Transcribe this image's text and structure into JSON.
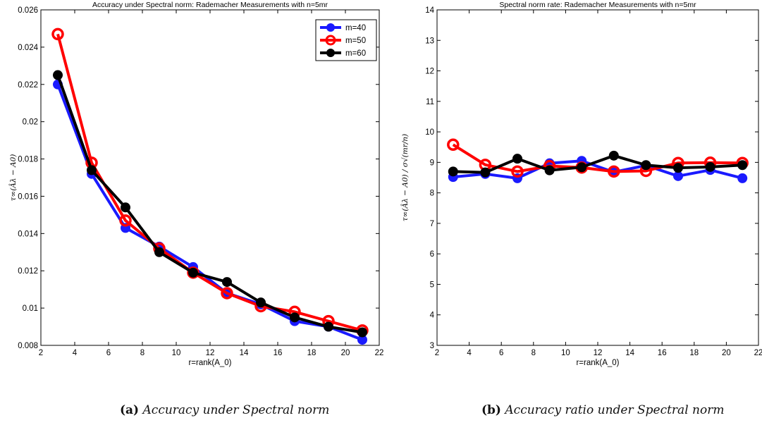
{
  "captions": {
    "a_label": "(a)",
    "a_text": "Accuracy under Spectral norm",
    "b_label": "(b)",
    "b_text": "Accuracy ratio under Spectral norm"
  },
  "chart_data": [
    {
      "type": "line",
      "title": "Accuracy under Spectral norm: Rademacher Measurements with n=5mr",
      "xlabel": "r=rank(A_0)",
      "ylabel": "τ∞(Âλ − A0)",
      "xlim": [
        2,
        22
      ],
      "ylim": [
        0.008,
        0.026
      ],
      "xticks": [
        2,
        4,
        6,
        8,
        10,
        12,
        14,
        16,
        18,
        20,
        22
      ],
      "yticks": [
        0.008,
        0.01,
        0.012,
        0.014,
        0.016,
        0.018,
        0.02,
        0.022,
        0.024,
        0.026
      ],
      "ytick_labels": [
        "0.008",
        "0.01",
        "0.012",
        "0.014",
        "0.016",
        "0.018",
        "0.02",
        "0.022",
        "0.024",
        "0.026"
      ],
      "grid": false,
      "legend_position": "top-right",
      "x": [
        3,
        5,
        7,
        9,
        11,
        13,
        15,
        17,
        19,
        21
      ],
      "series": [
        {
          "name": "m=40",
          "color": "#1a1aff",
          "marker": "filled",
          "values": [
            0.022,
            0.0172,
            0.0143,
            0.0133,
            0.0122,
            0.0108,
            0.0102,
            0.0093,
            0.009,
            0.0083
          ]
        },
        {
          "name": "m=50",
          "color": "#ff0000",
          "marker": "open",
          "values": [
            0.0247,
            0.0178,
            0.0147,
            0.0132,
            0.0119,
            0.0108,
            0.0101,
            0.0098,
            0.0093,
            0.0088
          ]
        },
        {
          "name": "m=60",
          "color": "#000000",
          "marker": "filled",
          "values": [
            0.0225,
            0.0174,
            0.0154,
            0.013,
            0.0119,
            0.0114,
            0.0103,
            0.0095,
            0.009,
            0.0087
          ]
        }
      ]
    },
    {
      "type": "line",
      "title": "Spectral norm rate: Rademacher Measurements with n=5mr",
      "xlabel": "r=rank(A_0)",
      "ylabel": "τ∞(Âλ − A0) / σ√(mr/n)",
      "xlim": [
        2,
        22
      ],
      "ylim": [
        3,
        14
      ],
      "xticks": [
        2,
        4,
        6,
        8,
        10,
        12,
        14,
        16,
        18,
        20,
        22
      ],
      "yticks": [
        3,
        4,
        5,
        6,
        7,
        8,
        9,
        10,
        11,
        12,
        13,
        14
      ],
      "ytick_labels": [
        "3",
        "4",
        "5",
        "6",
        "7",
        "8",
        "9",
        "10",
        "11",
        "12",
        "13",
        "14"
      ],
      "grid": false,
      "legend_position": "none",
      "x": [
        3,
        5,
        7,
        9,
        11,
        13,
        15,
        17,
        19,
        21
      ],
      "series": [
        {
          "color": "#1a1aff",
          "marker": "filled",
          "values": [
            8.52,
            8.62,
            8.48,
            8.97,
            9.05,
            8.68,
            8.9,
            8.55,
            8.75,
            8.48
          ]
        },
        {
          "color": "#ff0000",
          "marker": "open",
          "values": [
            9.58,
            8.92,
            8.7,
            8.88,
            8.83,
            8.7,
            8.72,
            8.98,
            8.99,
            8.98
          ]
        },
        {
          "color": "#000000",
          "marker": "filled",
          "values": [
            8.7,
            8.67,
            9.12,
            8.74,
            8.84,
            9.22,
            8.91,
            8.82,
            8.85,
            8.91
          ]
        }
      ]
    }
  ]
}
